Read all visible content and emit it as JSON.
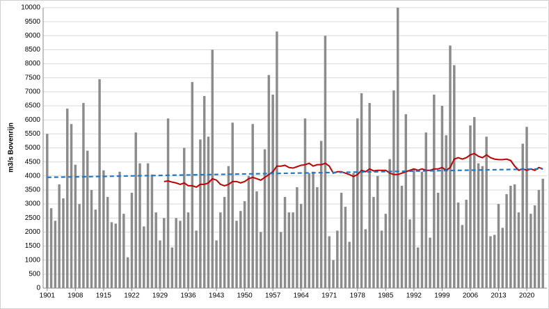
{
  "chart_data": {
    "type": "bar",
    "y_label": "m3/s Bovenrijn",
    "x": [
      1901,
      1902,
      1903,
      1904,
      1905,
      1906,
      1907,
      1908,
      1909,
      1910,
      1911,
      1912,
      1913,
      1914,
      1915,
      1916,
      1917,
      1918,
      1919,
      1920,
      1921,
      1922,
      1923,
      1924,
      1925,
      1926,
      1927,
      1928,
      1929,
      1930,
      1931,
      1932,
      1933,
      1934,
      1935,
      1936,
      1937,
      1938,
      1939,
      1940,
      1941,
      1942,
      1943,
      1944,
      1945,
      1946,
      1947,
      1948,
      1949,
      1950,
      1951,
      1952,
      1953,
      1954,
      1955,
      1956,
      1957,
      1958,
      1959,
      1960,
      1961,
      1962,
      1963,
      1964,
      1965,
      1966,
      1967,
      1968,
      1969,
      1970,
      1971,
      1972,
      1973,
      1974,
      1975,
      1976,
      1977,
      1978,
      1979,
      1980,
      1981,
      1982,
      1983,
      1984,
      1985,
      1986,
      1987,
      1988,
      1989,
      1990,
      1991,
      1992,
      1993,
      1994,
      1995,
      1996,
      1997,
      1998,
      1999,
      2000,
      2001,
      2002,
      2003,
      2004,
      2005,
      2006,
      2007,
      2008,
      2009,
      2010,
      2011,
      2012,
      2013,
      2014,
      2015,
      2016,
      2017,
      2018,
      2019,
      2020,
      2021,
      2022,
      2023,
      2024
    ],
    "series": [
      {
        "kind": "bar",
        "color": "#8c8c8c",
        "values": [
          5500,
          2850,
          2400,
          3700,
          3200,
          6400,
          5850,
          4400,
          3000,
          6600,
          4900,
          3500,
          2800,
          7450,
          4200,
          3250,
          2350,
          2300,
          4150,
          2650,
          1100,
          3400,
          5550,
          4450,
          2200,
          4450,
          4050,
          2700,
          1700,
          2500,
          6050,
          1450,
          2500,
          2400,
          5000,
          2700,
          7350,
          2050,
          5300,
          6850,
          5400,
          8500,
          1700,
          2700,
          3250,
          4350,
          5900,
          2400,
          2750,
          3100,
          4000,
          5850,
          3450,
          2000,
          4950,
          7600,
          6900,
          9150,
          2000,
          3250,
          2700,
          2700,
          3600,
          3000,
          6050,
          4100,
          4150,
          3600,
          5250,
          9000,
          1850,
          1000,
          2050,
          3400,
          2900,
          1650,
          4100,
          6050,
          6950,
          2100,
          6600,
          3250,
          4000,
          2050,
          2650,
          4600,
          7050,
          10000,
          3650,
          6200,
          2450,
          4250,
          1450,
          4150,
          5550,
          1800,
          6900,
          3400,
          6500,
          5450,
          8650,
          7950,
          3050,
          2250,
          3150,
          5800,
          6100,
          4450,
          4350,
          5400,
          1850,
          1900,
          3000,
          2150,
          3350,
          3650,
          3700,
          2700,
          5150,
          5750,
          2650,
          2950,
          3500,
          3900
        ]
      },
      {
        "kind": "line",
        "color": "#c00000",
        "values": [
          null,
          null,
          null,
          null,
          null,
          null,
          null,
          null,
          null,
          null,
          null,
          null,
          null,
          null,
          null,
          null,
          null,
          null,
          null,
          null,
          null,
          null,
          null,
          null,
          null,
          null,
          null,
          null,
          null,
          3800,
          3820,
          3780,
          3750,
          3700,
          3750,
          3650,
          3650,
          3600,
          3700,
          3700,
          3750,
          3900,
          3850,
          3700,
          3650,
          3700,
          3800,
          3800,
          3750,
          3800,
          3900,
          3950,
          3900,
          3850,
          3950,
          4050,
          4150,
          4350,
          4350,
          4380,
          4300,
          4280,
          4330,
          4380,
          4400,
          4450,
          4350,
          4400,
          4400,
          4450,
          4350,
          4100,
          4150,
          4150,
          4100,
          4050,
          3980,
          4050,
          4200,
          4150,
          4250,
          4180,
          4200,
          4200,
          4200,
          4100,
          4050,
          4050,
          4100,
          4150,
          4200,
          4250,
          4200,
          4250,
          4200,
          4200,
          4250,
          4250,
          4300,
          4200,
          4300,
          4600,
          4650,
          4600,
          4650,
          4750,
          4800,
          4700,
          4650,
          4750,
          4650,
          4600,
          4580,
          4580,
          4600,
          4550,
          4350,
          4200,
          4250,
          4200,
          4250,
          4200,
          4300,
          4250
        ]
      },
      {
        "kind": "trend",
        "color": "#1f78c8",
        "x": [
          1901,
          2024
        ],
        "values": [
          3950,
          4250
        ]
      }
    ],
    "xlim": [
      1900,
      2025
    ],
    "xticks": [
      1901,
      1908,
      1915,
      1922,
      1929,
      1936,
      1943,
      1950,
      1957,
      1964,
      1971,
      1978,
      1985,
      1992,
      1999,
      2006,
      2013,
      2020
    ],
    "ylim": [
      0,
      10000
    ],
    "yticks": [
      0,
      500,
      1000,
      1500,
      2000,
      2500,
      3000,
      3500,
      4000,
      4500,
      5000,
      5500,
      6000,
      6500,
      7000,
      7500,
      8000,
      8500,
      9000,
      9500,
      10000
    ],
    "grid": true
  }
}
